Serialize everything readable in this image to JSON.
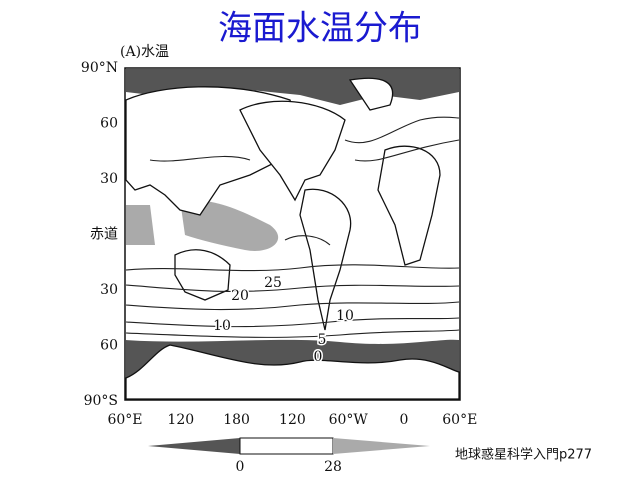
{
  "header": {
    "title": "海面水温分布"
  },
  "map": {
    "panel_label": "(A)水温",
    "lat_labels": [
      "90°N",
      "60",
      "30",
      "赤道",
      "30",
      "60",
      "90°S"
    ],
    "lon_labels": [
      "60°E",
      "120",
      "180",
      "120",
      "60°W",
      "0",
      "60°E"
    ],
    "contour_labels": [
      "25",
      "20",
      "10",
      "10",
      "5",
      "0"
    ]
  },
  "colorbar": {
    "labels": [
      "0",
      "28"
    ]
  },
  "footer": {
    "citation": "地球惑星科学入門p277"
  }
}
